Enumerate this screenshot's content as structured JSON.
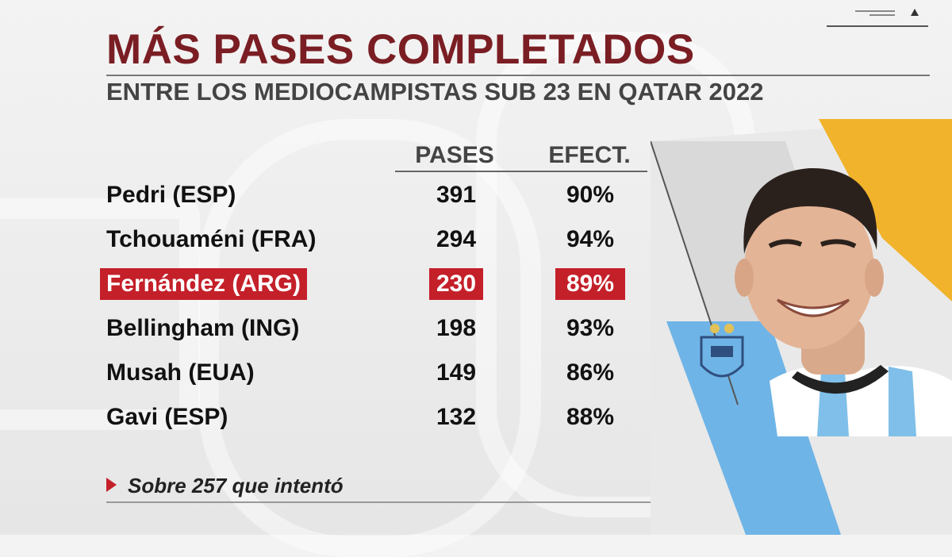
{
  "header": {
    "title": "MÁS PASES COMPLETADOS",
    "subtitle": "ENTRE LOS MEDIOCAMPISTAS SUB 23 EN QATAR 2022"
  },
  "table": {
    "columns": [
      "PASES",
      "EFECT."
    ],
    "rows": [
      {
        "player": "Pedri (ESP)",
        "pases": "391",
        "efect": "90%"
      },
      {
        "player": "Tchouaméni (FRA)",
        "pases": "294",
        "efect": "94%"
      },
      {
        "player": "Fernández (ARG)",
        "pases": "230",
        "efect": "89%",
        "highlighted": true
      },
      {
        "player": "Bellingham (ING)",
        "pases": "198",
        "efect": "93%"
      },
      {
        "player": "Musah (EUA)",
        "pases": "149",
        "efect": "86%"
      },
      {
        "player": "Gavi (ESP)",
        "pases": "132",
        "efect": "88%"
      }
    ]
  },
  "footnote": "Sobre 257 que intentó",
  "colors": {
    "title": "#7a1e24",
    "highlight": "#c4202a",
    "argentina_blue": "#6fb4e6",
    "accent_yellow": "#f1b32b"
  },
  "icons": [
    "menu-icon",
    "caret-icon",
    "play-icon",
    "afa-crest-icon"
  ]
}
